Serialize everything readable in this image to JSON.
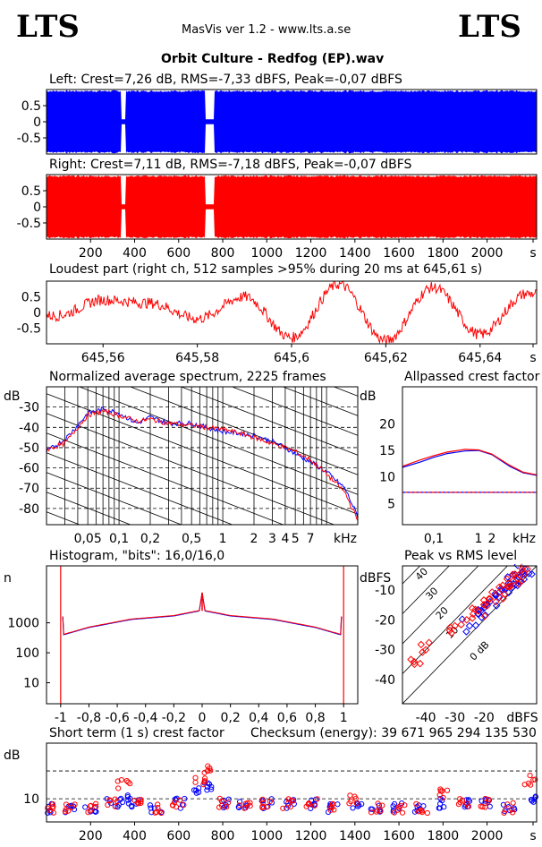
{
  "header": {
    "logo_left": "LTS",
    "logo_right": "LTS",
    "app_version": "MasVis ver 1.2 - www.lts.a.se",
    "file_title": "Orbit Culture - Redfog (EP).wav"
  },
  "colors": {
    "left": "#0000ff",
    "right": "#ff0000",
    "grid": "#000000",
    "axis": "#000000"
  },
  "panels": {
    "left_wave": {
      "label": "Left: Crest=7,26 dB, RMS=-7,33 dBFS, Peak=-0,07 dBFS",
      "yticks": [
        "0.5",
        "0",
        "-0.5"
      ]
    },
    "right_wave": {
      "label": "Right: Crest=7,11 dB, RMS=-7,18 dBFS, Peak=-0,07 dBFS",
      "yticks": [
        "0.5",
        "0",
        "-0.5"
      ],
      "xticks": [
        "200",
        "400",
        "600",
        "800",
        "1000",
        "1200",
        "1400",
        "1600",
        "1800",
        "2000",
        "s"
      ]
    },
    "loudest": {
      "label": "Loudest part (right ch, 512 samples >95% during 20 ms at 645,61 s)",
      "yticks": [
        "0.5",
        "0",
        "-0.5"
      ],
      "xticks": [
        "645,56",
        "645,58",
        "645,6",
        "645,62",
        "645,64",
        "s"
      ]
    },
    "spectrum": {
      "label": "Normalized average spectrum, 2225 frames",
      "ylabel": "dB",
      "yticks": [
        "-30",
        "-40",
        "-50",
        "-60",
        "-70",
        "-80"
      ],
      "xticks": [
        "0,05",
        "0,1",
        "0,2",
        "0,5",
        "1",
        "2",
        "3",
        "4",
        "5",
        "7",
        "kHz"
      ]
    },
    "allpass": {
      "label": "Allpassed crest factor",
      "ylabel": "dB",
      "yticks": [
        "20",
        "15",
        "10",
        "5"
      ],
      "xticks": [
        "0,1",
        "1",
        "2",
        "kHz"
      ]
    },
    "histogram": {
      "label": "Histogram, \"bits\": 16,0/16,0",
      "ylabel": "n",
      "yticks": [
        "1000",
        "100",
        "10"
      ],
      "xticks": [
        "-1",
        "-0,8",
        "-0,6",
        "-0,4",
        "-0,2",
        "0",
        "0,2",
        "0,4",
        "0,6",
        "0,8",
        "1"
      ]
    },
    "peak_rms": {
      "label": "Peak vs RMS level",
      "ylabel": "dBFS",
      "yticks": [
        "-10",
        "-20",
        "-30",
        "-40"
      ],
      "xticks": [
        "-40",
        "-30",
        "-20",
        "dBFS"
      ],
      "diag_labels": [
        "40",
        "30",
        "20",
        "10",
        "0 dB"
      ]
    },
    "short_crest": {
      "label": "Short term (1 s) crest factor",
      "checksum": "Checksum (energy):  39 671 965 294 135 530",
      "ylabel": "dB",
      "yticks": [
        "10"
      ],
      "xticks": [
        "200",
        "400",
        "600",
        "800",
        "1000",
        "1200",
        "1400",
        "1600",
        "1800",
        "2000",
        "s"
      ]
    }
  },
  "chart_data": [
    {
      "type": "area",
      "title": "Left: Crest=7,26 dB, RMS=-7,33 dBFS, Peak=-0,07 dBFS",
      "xlim": [
        0,
        2225
      ],
      "ylim": [
        -1,
        1
      ],
      "quiet_sections_s": [
        [
          340,
          360
        ],
        [
          720,
          760
        ]
      ]
    },
    {
      "type": "area",
      "title": "Right: Crest=7,11 dB, RMS=-7,18 dBFS, Peak=-0,07 dBFS",
      "xlim": [
        0,
        2225
      ],
      "ylim": [
        -1,
        1
      ],
      "quiet_sections_s": [
        [
          340,
          360
        ],
        [
          720,
          760
        ]
      ]
    },
    {
      "type": "line",
      "title": "Loudest part (right ch, 512 samples >95% during 20 ms at 645,61 s)",
      "xlim": [
        645.548,
        645.652
      ],
      "ylim": [
        -1,
        1
      ],
      "x": [
        645.55,
        645.56,
        645.57,
        645.58,
        645.59,
        645.6,
        645.61,
        645.62,
        645.63,
        645.64,
        645.65
      ],
      "y": [
        -0.1,
        0.4,
        0.3,
        -0.2,
        0.5,
        -0.8,
        0.9,
        -0.9,
        0.8,
        -0.7,
        0.6
      ]
    },
    {
      "type": "line",
      "title": "Normalized average spectrum, 2225 frames",
      "ylabel": "dB",
      "xlabel": "kHz",
      "ylim": [
        -88,
        -20
      ],
      "x": [
        0.02,
        0.03,
        0.04,
        0.05,
        0.07,
        0.1,
        0.15,
        0.2,
        0.3,
        0.5,
        0.7,
        1,
        1.5,
        2,
        3,
        4,
        5,
        7,
        10,
        15,
        20
      ],
      "series": [
        {
          "name": "left",
          "values": [
            -52,
            -46,
            -39,
            -33,
            -31,
            -33,
            -38,
            -35,
            -38,
            -38,
            -40,
            -42,
            -43,
            -44,
            -47,
            -50,
            -53,
            -57,
            -62,
            -70,
            -84
          ]
        },
        {
          "name": "right",
          "values": [
            -51,
            -48,
            -40,
            -34,
            -32,
            -34,
            -37,
            -36,
            -38,
            -39,
            -40,
            -41,
            -43,
            -45,
            -48,
            -50,
            -52,
            -56,
            -63,
            -72,
            -86
          ]
        }
      ]
    },
    {
      "type": "line",
      "title": "Allpassed crest factor",
      "ylabel": "dB",
      "xlabel": "kHz",
      "ylim": [
        1,
        27
      ],
      "x": [
        0.02,
        0.05,
        0.1,
        0.2,
        0.5,
        1,
        2,
        5,
        10,
        20
      ],
      "series": [
        {
          "name": "left",
          "values": [
            11.8,
            12.8,
            13.7,
            14.4,
            14.9,
            15.0,
            14.2,
            12.0,
            10.8,
            10.3
          ]
        },
        {
          "name": "right",
          "values": [
            12.0,
            13.2,
            14.0,
            14.7,
            15.2,
            15.1,
            14.3,
            12.2,
            10.9,
            10.4
          ]
        }
      ],
      "reference_line_db": 7.1
    },
    {
      "type": "line",
      "title": "Histogram, \"bits\": 16,0/16,0",
      "ylabel": "n",
      "xlim": [
        -1.1,
        1.1
      ],
      "log_y": true,
      "x": [
        -1,
        -0.98,
        -0.8,
        -0.5,
        -0.2,
        -0.02,
        0,
        0.02,
        0.2,
        0.5,
        0.8,
        0.98,
        1
      ],
      "y": [
        100000,
        400,
        700,
        1300,
        1700,
        2500,
        10000,
        2500,
        1700,
        1300,
        700,
        400,
        100000
      ]
    },
    {
      "type": "scatter",
      "title": "Peak vs RMS level",
      "xlabel": "dBFS",
      "ylabel": "dBFS",
      "xlim": [
        -48,
        -2
      ],
      "ylim": [
        -48,
        -2
      ],
      "series": [
        {
          "name": "left",
          "x": [
            -25,
            -22,
            -20,
            -18,
            -16,
            -14,
            -12,
            -10,
            -9,
            -8,
            -7,
            -6
          ],
          "y": [
            -22,
            -18,
            -16,
            -14,
            -12,
            -10,
            -9,
            -8,
            -7,
            -6,
            -4,
            -3
          ]
        },
        {
          "name": "right",
          "x": [
            -44,
            -40,
            -30,
            -26,
            -22,
            -20,
            -18,
            -15,
            -12,
            -10,
            -8,
            -7
          ],
          "y": [
            -34,
            -30,
            -22,
            -20,
            -17,
            -15,
            -13,
            -11,
            -9,
            -7,
            -5,
            -3
          ]
        }
      ]
    },
    {
      "type": "scatter",
      "title": "Short term (1 s) crest factor",
      "ylabel": "dB",
      "xlim": [
        0,
        2225
      ],
      "ylim": [
        5,
        22
      ],
      "series": [
        {
          "name": "left",
          "x": [
            20,
            100,
            200,
            300,
            350,
            400,
            500,
            600,
            700,
            730,
            800,
            900,
            1000,
            1100,
            1200,
            1300,
            1400,
            1500,
            1600,
            1700,
            1800,
            1900,
            2000,
            2100,
            2200
          ],
          "y": [
            8,
            8,
            8,
            9,
            10,
            9,
            8,
            9,
            12,
            13,
            9,
            9,
            9,
            9,
            9,
            8,
            9,
            8,
            8,
            8,
            9,
            9,
            9,
            8,
            10
          ]
        },
        {
          "name": "right",
          "x": [
            20,
            100,
            200,
            300,
            350,
            400,
            500,
            600,
            700,
            730,
            800,
            900,
            1000,
            1100,
            1200,
            1300,
            1400,
            1500,
            1600,
            1700,
            1800,
            1900,
            2000,
            2100,
            2200
          ],
          "y": [
            8,
            8,
            8,
            9,
            13,
            9,
            8,
            9,
            14,
            16,
            9,
            9,
            9,
            9,
            9,
            8,
            10,
            8,
            8,
            8,
            11,
            9,
            9,
            8,
            14
          ]
        }
      ],
      "reference_lines_db": [
        10,
        16
      ]
    }
  ]
}
